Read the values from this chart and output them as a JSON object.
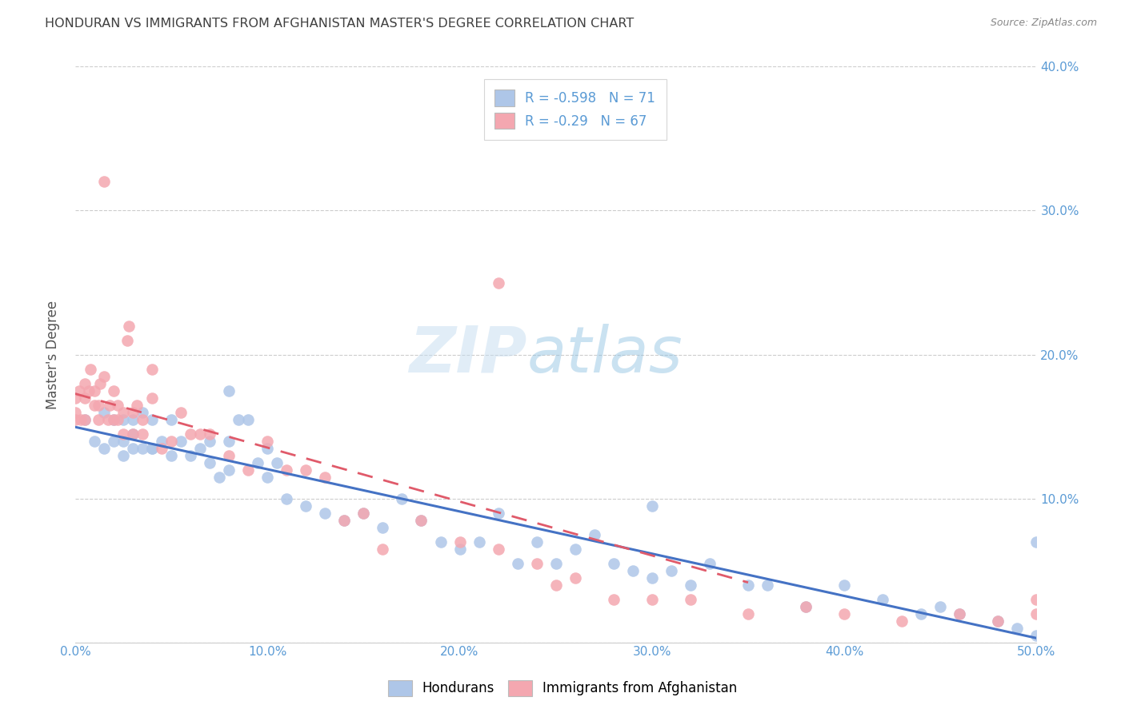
{
  "title": "HONDURAN VS IMMIGRANTS FROM AFGHANISTAN MASTER'S DEGREE CORRELATION CHART",
  "source": "Source: ZipAtlas.com",
  "ylabel": "Master's Degree",
  "xlim": [
    0.0,
    0.5
  ],
  "ylim": [
    0.0,
    0.4
  ],
  "xtick_vals": [
    0.0,
    0.1,
    0.2,
    0.3,
    0.4,
    0.5
  ],
  "ytick_vals": [
    0.0,
    0.1,
    0.2,
    0.3,
    0.4
  ],
  "legend_labels": [
    "Hondurans",
    "Immigrants from Afghanistan"
  ],
  "blue_color": "#aec6e8",
  "pink_color": "#f4a7b0",
  "blue_line_color": "#4472c4",
  "pink_line_color": "#e05a6a",
  "title_color": "#404040",
  "axis_label_color": "#5b9bd5",
  "R_blue": -0.598,
  "N_blue": 71,
  "R_pink": -0.29,
  "N_pink": 67,
  "blue_scatter_x": [
    0.005,
    0.01,
    0.015,
    0.015,
    0.02,
    0.02,
    0.025,
    0.025,
    0.025,
    0.03,
    0.03,
    0.03,
    0.035,
    0.035,
    0.04,
    0.04,
    0.04,
    0.045,
    0.05,
    0.05,
    0.055,
    0.06,
    0.065,
    0.07,
    0.07,
    0.075,
    0.08,
    0.08,
    0.085,
    0.09,
    0.095,
    0.1,
    0.1,
    0.105,
    0.11,
    0.12,
    0.13,
    0.14,
    0.15,
    0.16,
    0.17,
    0.18,
    0.19,
    0.2,
    0.21,
    0.22,
    0.23,
    0.24,
    0.25,
    0.26,
    0.27,
    0.28,
    0.29,
    0.3,
    0.31,
    0.32,
    0.33,
    0.35,
    0.36,
    0.38,
    0.4,
    0.42,
    0.44,
    0.45,
    0.46,
    0.48,
    0.49,
    0.5,
    0.5,
    0.08,
    0.3
  ],
  "blue_scatter_y": [
    0.155,
    0.14,
    0.16,
    0.135,
    0.155,
    0.14,
    0.14,
    0.13,
    0.155,
    0.135,
    0.155,
    0.145,
    0.135,
    0.16,
    0.135,
    0.155,
    0.135,
    0.14,
    0.13,
    0.155,
    0.14,
    0.13,
    0.135,
    0.125,
    0.14,
    0.115,
    0.12,
    0.14,
    0.155,
    0.155,
    0.125,
    0.135,
    0.115,
    0.125,
    0.1,
    0.095,
    0.09,
    0.085,
    0.09,
    0.08,
    0.1,
    0.085,
    0.07,
    0.065,
    0.07,
    0.09,
    0.055,
    0.07,
    0.055,
    0.065,
    0.075,
    0.055,
    0.05,
    0.045,
    0.05,
    0.04,
    0.055,
    0.04,
    0.04,
    0.025,
    0.04,
    0.03,
    0.02,
    0.025,
    0.02,
    0.015,
    0.01,
    0.005,
    0.07,
    0.175,
    0.095
  ],
  "pink_scatter_x": [
    0.0,
    0.0,
    0.0,
    0.002,
    0.003,
    0.005,
    0.005,
    0.005,
    0.007,
    0.008,
    0.01,
    0.01,
    0.012,
    0.012,
    0.013,
    0.015,
    0.015,
    0.017,
    0.018,
    0.02,
    0.02,
    0.022,
    0.022,
    0.025,
    0.025,
    0.027,
    0.028,
    0.03,
    0.03,
    0.032,
    0.035,
    0.035,
    0.04,
    0.04,
    0.045,
    0.05,
    0.055,
    0.06,
    0.065,
    0.07,
    0.08,
    0.09,
    0.1,
    0.11,
    0.12,
    0.13,
    0.14,
    0.15,
    0.16,
    0.18,
    0.2,
    0.22,
    0.22,
    0.24,
    0.25,
    0.26,
    0.28,
    0.3,
    0.32,
    0.35,
    0.38,
    0.4,
    0.43,
    0.46,
    0.48,
    0.5,
    0.5
  ],
  "pink_scatter_y": [
    0.155,
    0.17,
    0.16,
    0.175,
    0.155,
    0.155,
    0.17,
    0.18,
    0.175,
    0.19,
    0.165,
    0.175,
    0.165,
    0.155,
    0.18,
    0.32,
    0.185,
    0.155,
    0.165,
    0.155,
    0.175,
    0.165,
    0.155,
    0.16,
    0.145,
    0.21,
    0.22,
    0.16,
    0.145,
    0.165,
    0.155,
    0.145,
    0.19,
    0.17,
    0.135,
    0.14,
    0.16,
    0.145,
    0.145,
    0.145,
    0.13,
    0.12,
    0.14,
    0.12,
    0.12,
    0.115,
    0.085,
    0.09,
    0.065,
    0.085,
    0.07,
    0.065,
    0.25,
    0.055,
    0.04,
    0.045,
    0.03,
    0.03,
    0.03,
    0.02,
    0.025,
    0.02,
    0.015,
    0.02,
    0.015,
    0.03,
    0.02
  ]
}
